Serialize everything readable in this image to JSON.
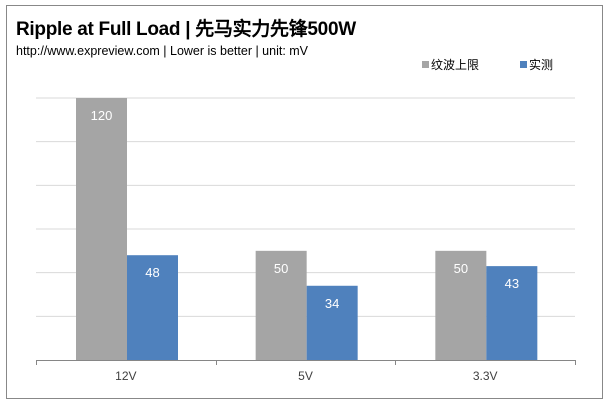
{
  "chart_data": {
    "type": "bar",
    "title": "Ripple at Full Load | 先马实力先锋500W",
    "subtitle": "http://www.expreview.com | Lower is better | unit: mV",
    "categories": [
      "12V",
      "5V",
      "3.3V"
    ],
    "series": [
      {
        "name": "纹波上限",
        "values": [
          120,
          50,
          50
        ],
        "color": "#a5a5a5"
      },
      {
        "name": "实测",
        "values": [
          48,
          34,
          43
        ],
        "color": "#4f81bd"
      }
    ],
    "ylim": [
      0,
      120
    ],
    "ytick_step": 20,
    "grid": true,
    "legend": "top-right",
    "data_labels": true,
    "xlabel": "",
    "ylabel": ""
  }
}
